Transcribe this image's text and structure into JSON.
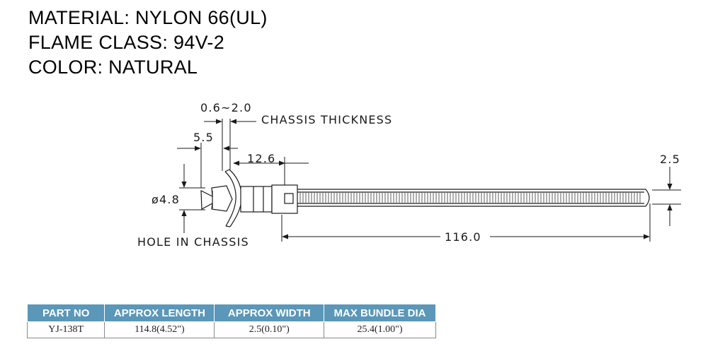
{
  "specs": {
    "material": "MATERIAL: NYLON 66(UL)",
    "flame_class": "FLAME CLASS: 94V-2",
    "color": "COLOR: NATURAL"
  },
  "drawing": {
    "dim_thickness": "0.6~2.0",
    "chassis_thickness_label": "CHASSIS THICKNESS",
    "dim_5_5": "5.5",
    "dim_12_6": "12.6",
    "dim_2_5": "2.5",
    "dim_hole": "ø4.8",
    "hole_label": "HOLE IN CHASSIS",
    "dim_116": "116.0"
  },
  "table": {
    "headers": [
      "PART NO",
      "APPROX LENGTH",
      "APPROX WIDTH",
      "MAX BUNDLE DIA"
    ],
    "rows": [
      [
        "YJ-138T",
        "114.8(4.52\")",
        "2.5(0.10\")",
        "25.4(1.00\")"
      ]
    ]
  },
  "colors": {
    "table_header": "#5a97b9",
    "line": "#1a1a1a"
  }
}
